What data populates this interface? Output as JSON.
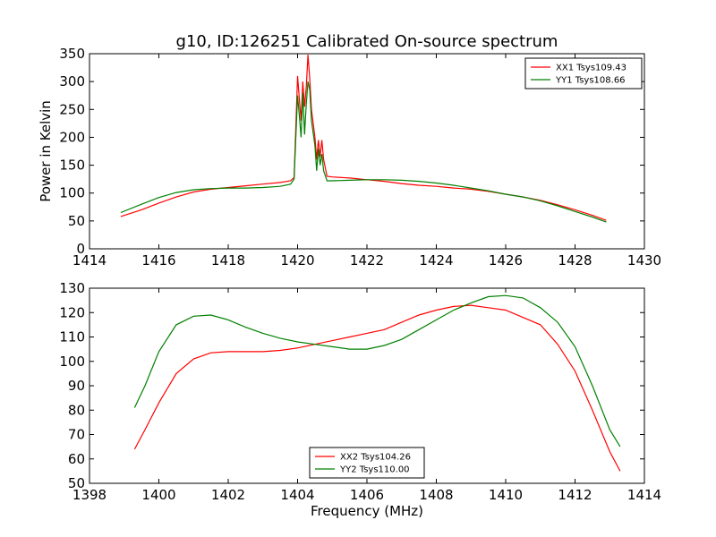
{
  "figure": {
    "title": "g10, ID:126251 Calibrated On-source spectrum"
  },
  "chart_data": [
    {
      "type": "line",
      "title": "g10, ID:126251 Calibrated On-source spectrum",
      "xlabel": "",
      "ylabel": "Power in Kelvin",
      "xlim": [
        1414,
        1430
      ],
      "ylim": [
        0,
        350
      ],
      "xticks": [
        1414,
        1416,
        1418,
        1420,
        1422,
        1424,
        1426,
        1428,
        1430
      ],
      "yticks": [
        0,
        50,
        100,
        150,
        200,
        250,
        300,
        350
      ],
      "legend_position": "top-right",
      "grid": false,
      "series": [
        {
          "name": "XX1 Tsys109.43",
          "color": "#ff0000",
          "points": [
            [
              1414.9,
              58
            ],
            [
              1415.5,
              70
            ],
            [
              1416.0,
              82
            ],
            [
              1416.5,
              93
            ],
            [
              1417.0,
              102
            ],
            [
              1417.5,
              107
            ],
            [
              1418.0,
              110
            ],
            [
              1418.5,
              113
            ],
            [
              1419.0,
              116
            ],
            [
              1419.5,
              119
            ],
            [
              1419.8,
              122
            ],
            [
              1419.9,
              128
            ],
            [
              1420.0,
              310
            ],
            [
              1420.05,
              270
            ],
            [
              1420.1,
              230
            ],
            [
              1420.15,
              300
            ],
            [
              1420.2,
              255
            ],
            [
              1420.25,
              290
            ],
            [
              1420.3,
              348
            ],
            [
              1420.35,
              305
            ],
            [
              1420.4,
              250
            ],
            [
              1420.5,
              200
            ],
            [
              1420.55,
              160
            ],
            [
              1420.6,
              195
            ],
            [
              1420.65,
              165
            ],
            [
              1420.7,
              195
            ],
            [
              1420.75,
              160
            ],
            [
              1420.85,
              130
            ],
            [
              1421.0,
              129
            ],
            [
              1421.5,
              127
            ],
            [
              1422.0,
              124
            ],
            [
              1422.5,
              121
            ],
            [
              1423.0,
              117
            ],
            [
              1423.5,
              114
            ],
            [
              1424.0,
              112
            ],
            [
              1424.5,
              109
            ],
            [
              1425.0,
              107
            ],
            [
              1425.5,
              103
            ],
            [
              1426.0,
              98
            ],
            [
              1426.5,
              93
            ],
            [
              1427.0,
              87
            ],
            [
              1427.5,
              79
            ],
            [
              1428.0,
              70
            ],
            [
              1428.5,
              60
            ],
            [
              1428.9,
              51
            ]
          ]
        },
        {
          "name": "YY1 Tsys108.66",
          "color": "#008000",
          "points": [
            [
              1414.9,
              65
            ],
            [
              1415.5,
              80
            ],
            [
              1416.0,
              92
            ],
            [
              1416.5,
              101
            ],
            [
              1417.0,
              106
            ],
            [
              1417.5,
              108
            ],
            [
              1418.0,
              109
            ],
            [
              1418.5,
              109
            ],
            [
              1419.0,
              110
            ],
            [
              1419.5,
              112
            ],
            [
              1419.8,
              116
            ],
            [
              1419.9,
              125
            ],
            [
              1420.0,
              275
            ],
            [
              1420.05,
              240
            ],
            [
              1420.1,
              200
            ],
            [
              1420.15,
              280
            ],
            [
              1420.2,
              205
            ],
            [
              1420.25,
              260
            ],
            [
              1420.3,
              300
            ],
            [
              1420.35,
              285
            ],
            [
              1420.4,
              230
            ],
            [
              1420.5,
              185
            ],
            [
              1420.55,
              140
            ],
            [
              1420.6,
              180
            ],
            [
              1420.65,
              150
            ],
            [
              1420.7,
              170
            ],
            [
              1420.75,
              140
            ],
            [
              1420.85,
              122
            ],
            [
              1421.0,
              122
            ],
            [
              1421.5,
              123
            ],
            [
              1422.0,
              124
            ],
            [
              1422.5,
              124
            ],
            [
              1423.0,
              123
            ],
            [
              1423.5,
              121
            ],
            [
              1424.0,
              118
            ],
            [
              1424.5,
              114
            ],
            [
              1425.0,
              109
            ],
            [
              1425.5,
              104
            ],
            [
              1426.0,
              98
            ],
            [
              1426.5,
              93
            ],
            [
              1427.0,
              86
            ],
            [
              1427.5,
              77
            ],
            [
              1428.0,
              67
            ],
            [
              1428.5,
              57
            ],
            [
              1428.9,
              48
            ]
          ]
        }
      ]
    },
    {
      "type": "line",
      "title": "",
      "xlabel": "Frequency (MHz)",
      "ylabel": "",
      "xlim": [
        1398,
        1414
      ],
      "ylim": [
        50,
        130
      ],
      "xticks": [
        1398,
        1400,
        1402,
        1404,
        1406,
        1408,
        1410,
        1412,
        1414
      ],
      "yticks": [
        50,
        60,
        70,
        80,
        90,
        100,
        110,
        120,
        130
      ],
      "legend_position": "bottom-center",
      "grid": false,
      "series": [
        {
          "name": "XX2 Tsys104.26",
          "color": "#ff0000",
          "points": [
            [
              1399.3,
              64
            ],
            [
              1399.6,
              72
            ],
            [
              1400.0,
              83
            ],
            [
              1400.5,
              95
            ],
            [
              1401.0,
              101
            ],
            [
              1401.5,
              103.5
            ],
            [
              1402.0,
              104
            ],
            [
              1402.5,
              104
            ],
            [
              1403.0,
              104
            ],
            [
              1403.5,
              104.5
            ],
            [
              1404.0,
              105.5
            ],
            [
              1404.5,
              107
            ],
            [
              1405.0,
              108.5
            ],
            [
              1405.5,
              110
            ],
            [
              1406.0,
              111.5
            ],
            [
              1406.5,
              113
            ],
            [
              1407.0,
              116
            ],
            [
              1407.5,
              119
            ],
            [
              1408.0,
              121
            ],
            [
              1408.5,
              122.5
            ],
            [
              1409.0,
              123
            ],
            [
              1409.5,
              122
            ],
            [
              1410.0,
              121
            ],
            [
              1410.5,
              118
            ],
            [
              1411.0,
              115
            ],
            [
              1411.5,
              107
            ],
            [
              1412.0,
              96
            ],
            [
              1412.5,
              80
            ],
            [
              1413.0,
              63
            ],
            [
              1413.3,
              55
            ]
          ]
        },
        {
          "name": "YY2 Tsys110.00",
          "color": "#008000",
          "points": [
            [
              1399.3,
              81
            ],
            [
              1399.6,
              90
            ],
            [
              1400.0,
              104
            ],
            [
              1400.5,
              115
            ],
            [
              1401.0,
              118.5
            ],
            [
              1401.5,
              119
            ],
            [
              1402.0,
              117
            ],
            [
              1402.5,
              114
            ],
            [
              1403.0,
              111.5
            ],
            [
              1403.5,
              109.5
            ],
            [
              1404.0,
              108
            ],
            [
              1404.5,
              107
            ],
            [
              1405.0,
              106
            ],
            [
              1405.5,
              105
            ],
            [
              1406.0,
              105
            ],
            [
              1406.5,
              106.5
            ],
            [
              1407.0,
              109
            ],
            [
              1407.5,
              113
            ],
            [
              1408.0,
              117
            ],
            [
              1408.5,
              121
            ],
            [
              1409.0,
              124
            ],
            [
              1409.5,
              126.5
            ],
            [
              1410.0,
              127
            ],
            [
              1410.5,
              126
            ],
            [
              1411.0,
              122
            ],
            [
              1411.5,
              116
            ],
            [
              1412.0,
              106
            ],
            [
              1412.5,
              90
            ],
            [
              1413.0,
              72
            ],
            [
              1413.3,
              65
            ]
          ]
        }
      ]
    }
  ]
}
